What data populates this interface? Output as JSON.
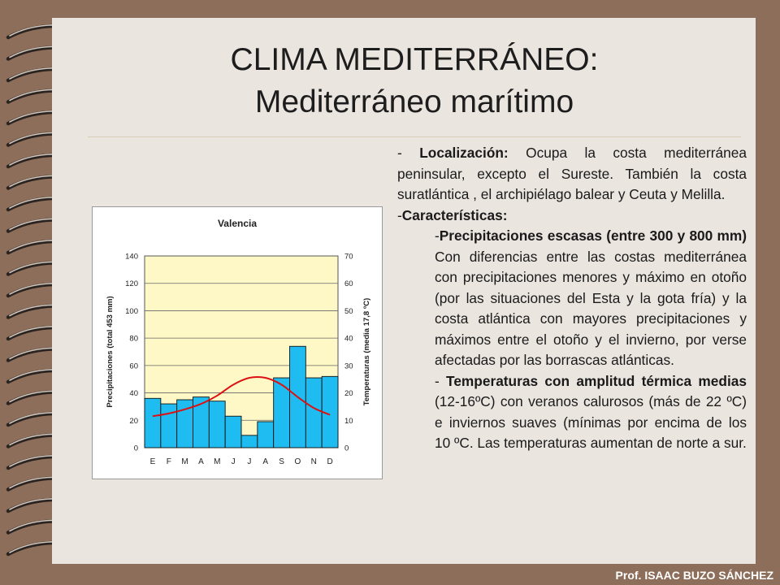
{
  "slide": {
    "title_line1": "CLIMA MEDITERRÁNEO:",
    "title_line2": "Mediterráneo marítimo",
    "footer": "Prof. ISAAC BUZO SÁNCHEZ"
  },
  "text": {
    "p1_prefix": "- ",
    "p1_bold": "Localización:",
    "p1_rest": " Ocupa la costa mediterránea peninsular, excepto el Sureste. También la costa suratlántica , el archipiélago balear y Ceuta y Melilla.",
    "p2_prefix": "-",
    "p2_bold": "Características:",
    "p3_prefix": "-",
    "p3_bold": "Precipitaciones escasas (entre 300 y 800 mm)",
    "p3_rest": " Con diferencias entre las costas mediterránea con precipitaciones menores y máximo en otoño (por las situaciones del Esta y la gota fría) y la costa atlántica con mayores precipitaciones y máximos entre el otoño y el invierno, por verse afectadas por las borrascas atlánticas.",
    "p4_prefix": "- ",
    "p4_bold": "Temperaturas con amplitud térmica medias",
    "p4_rest": " (12-16ºC) con veranos calurosos (más de 22 ºC) e inviernos suaves (mínimas por encima de los 10 ºC. Las temperaturas aumentan de norte a sur."
  },
  "colors": {
    "bar": "#1ebcf0",
    "line": "#dd1111",
    "plot_bg": "#fdf8c6"
  },
  "chart_data": {
    "type": "bar",
    "title": "Valencia",
    "categories": [
      "E",
      "F",
      "M",
      "A",
      "M",
      "J",
      "J",
      "A",
      "S",
      "O",
      "N",
      "D"
    ],
    "series": [
      {
        "name": "Precipitaciones (total 453 mm)",
        "type": "bar",
        "axis": "left",
        "values": [
          36,
          32,
          35,
          37,
          34,
          23,
          9,
          19,
          51,
          74,
          51,
          52
        ]
      },
      {
        "name": "Temperaturas (media 17,8 ºC)",
        "type": "line",
        "axis": "right",
        "values": [
          11.5,
          12.5,
          14,
          16,
          19,
          23,
          25.5,
          25.5,
          23,
          18.5,
          14.5,
          12
        ]
      }
    ],
    "ylabel": "Precipitaciones (total 453 mm)",
    "y2label": "Temperaturas (media 17,8 ºC)",
    "ylim": [
      0,
      140
    ],
    "y2lim": [
      0,
      70
    ],
    "yticks": [
      "0",
      "20",
      "40",
      "60",
      "80",
      "100",
      "120",
      "140"
    ],
    "y2ticks": [
      "0",
      "10",
      "20",
      "30",
      "40",
      "50",
      "60",
      "70"
    ],
    "grid": true
  }
}
